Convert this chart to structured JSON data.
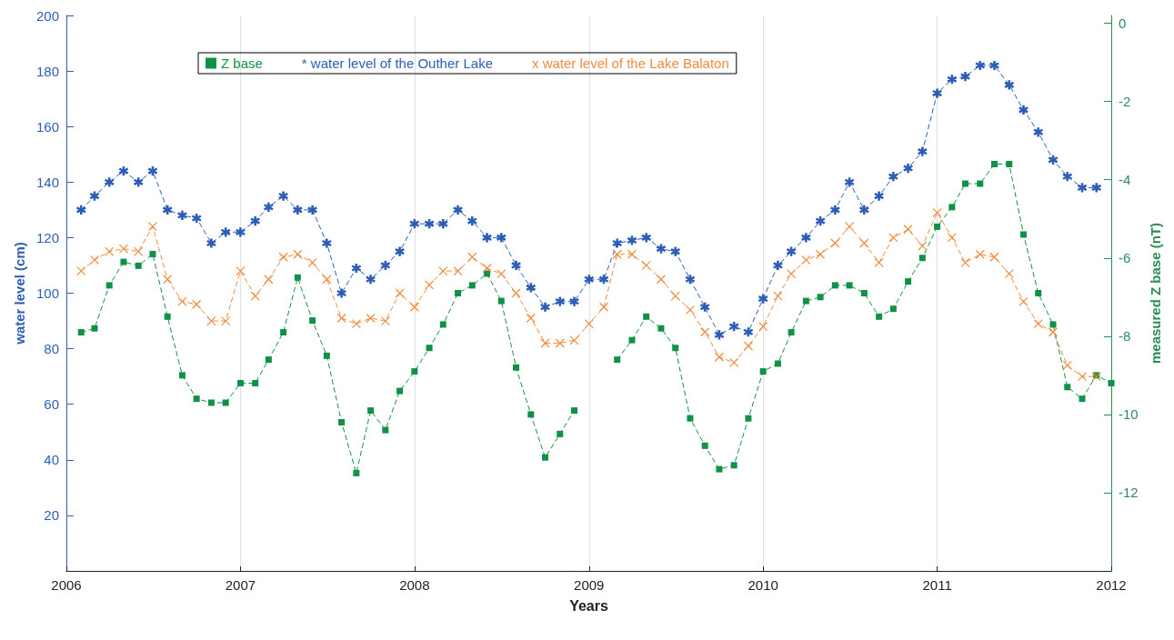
{
  "chart_data": {
    "type": "line",
    "xlabel": "Years",
    "ylabel": "water level (cm)",
    "y2label": "measured Z base (nT)",
    "x": [
      "2006-02",
      "2006-03",
      "2006-04",
      "2006-05",
      "2006-06",
      "2006-07",
      "2006-08",
      "2006-09",
      "2006-10",
      "2006-11",
      "2006-12",
      "2007-01",
      "2007-02",
      "2007-03",
      "2007-04",
      "2007-05",
      "2007-06",
      "2007-07",
      "2007-08",
      "2007-09",
      "2007-10",
      "2007-11",
      "2007-12",
      "2008-01",
      "2008-02",
      "2008-03",
      "2008-04",
      "2008-05",
      "2008-06",
      "2008-07",
      "2008-08",
      "2008-09",
      "2008-10",
      "2008-11",
      "2008-12",
      "2009-01",
      "2009-02",
      "2009-03",
      "2009-04",
      "2009-05",
      "2009-06",
      "2009-07",
      "2009-08",
      "2009-09",
      "2009-10",
      "2009-11",
      "2009-12",
      "2010-01",
      "2010-02",
      "2010-03",
      "2010-04",
      "2010-05",
      "2010-06",
      "2010-07",
      "2010-08",
      "2010-09",
      "2010-10",
      "2010-11",
      "2010-12",
      "2011-01",
      "2011-02",
      "2011-03",
      "2011-04",
      "2011-05",
      "2011-06",
      "2011-07",
      "2011-08",
      "2011-09",
      "2011-10",
      "2011-11",
      "2011-12",
      "2012-01"
    ],
    "series": [
      {
        "name": "Z base",
        "color": "#119146",
        "axis": "y2",
        "marker": "square",
        "values": [
          -7.9,
          -7.8,
          -6.7,
          -6.1,
          -6.2,
          -5.9,
          -7.5,
          -9.0,
          -9.6,
          -9.7,
          -9.7,
          -9.2,
          -9.2,
          -8.6,
          -7.9,
          -6.5,
          -7.6,
          -8.5,
          -10.2,
          -11.5,
          -9.9,
          -10.4,
          -9.4,
          -8.9,
          -8.3,
          -7.7,
          -6.9,
          -6.7,
          -6.4,
          -7.1,
          -8.8,
          -10.0,
          -11.1,
          -10.5,
          -9.9,
          null,
          null,
          -8.6,
          -8.1,
          -7.5,
          -7.8,
          -8.3,
          -10.1,
          -10.8,
          -11.4,
          -11.3,
          -10.1,
          -8.9,
          -8.7,
          -7.9,
          -7.1,
          -7.0,
          -6.7,
          -6.7,
          -6.9,
          -7.5,
          -7.3,
          -6.6,
          -6.0,
          -5.2,
          -4.7,
          -4.1,
          -4.1,
          -3.6,
          -3.6,
          -5.4,
          -6.9,
          -7.7,
          -9.3,
          -9.6,
          -9.0,
          -9.2
        ]
      },
      {
        "name": "* water level of the Outher Lake",
        "color": "#2d5db5",
        "marker": "star",
        "values": [
          130,
          135,
          140,
          144,
          140,
          144,
          130,
          128,
          127,
          118,
          122,
          122,
          126,
          131,
          135,
          130,
          130,
          118,
          100,
          109,
          105,
          110,
          115,
          125,
          125,
          125,
          130,
          126,
          120,
          120,
          110,
          102,
          95,
          97,
          97,
          105,
          105,
          118,
          119,
          120,
          116,
          115,
          105,
          95,
          85,
          88,
          86,
          98,
          110,
          115,
          120,
          126,
          130,
          140,
          130,
          135,
          142,
          145,
          151,
          172,
          177,
          178,
          182,
          182,
          175,
          166,
          158,
          148,
          142,
          138,
          138,
          null
        ]
      },
      {
        "name": "x water level of the Lake Balaton",
        "color": "#f08a3c",
        "marker": "cross",
        "values": [
          108,
          112,
          115,
          116,
          115,
          124,
          105,
          97,
          96,
          90,
          90,
          108,
          99,
          105,
          113,
          114,
          111,
          105,
          91,
          89,
          91,
          90,
          100,
          95,
          103,
          108,
          108,
          113,
          109,
          107,
          100,
          91,
          82,
          82,
          83,
          89,
          95,
          114,
          114,
          110,
          105,
          99,
          94,
          86,
          77,
          75,
          81,
          88,
          99,
          107,
          112,
          114,
          118,
          124,
          118,
          111,
          120,
          123,
          117,
          129,
          120,
          111,
          114,
          113,
          107,
          97,
          89,
          86,
          74,
          70,
          70,
          null
        ]
      }
    ],
    "xlim": [
      "2006",
      "2012"
    ],
    "xticks": [
      "2006",
      "2007",
      "2008",
      "2009",
      "2010",
      "2011",
      "2012"
    ],
    "ylim": [
      0,
      200
    ],
    "yticks": [
      20,
      40,
      60,
      80,
      100,
      120,
      140,
      160,
      180,
      200
    ],
    "y2lim": [
      -14,
      0.2
    ],
    "y2ticks": [
      -12,
      -10,
      -8,
      -6,
      -4,
      -2,
      0
    ],
    "grid": "x",
    "legend": "top",
    "line_style": "dashed"
  }
}
